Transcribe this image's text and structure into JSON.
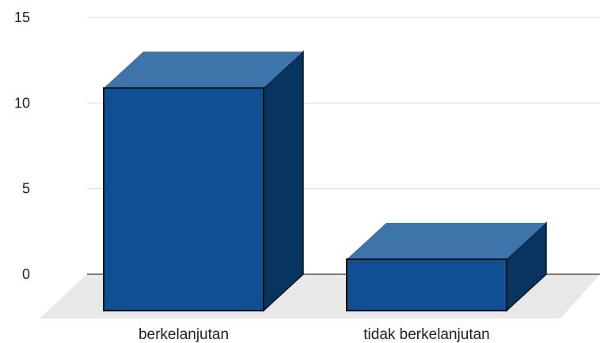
{
  "chart_data": {
    "type": "bar",
    "categories": [
      "berkelanjutan",
      "tidak berkelanjutan"
    ],
    "values": [
      13,
      3
    ],
    "ylim": [
      0,
      15
    ],
    "yticks": [
      0,
      5,
      10,
      15
    ],
    "grid": true,
    "legend": "none",
    "style": "3d"
  },
  "colors": {
    "bar_front": "#0e5093",
    "bar_top": "#3d74a9",
    "bar_side": "#08355f",
    "bar_outline": "#111111",
    "gridline": "#d9d9d9",
    "floor": "#e8e8e8",
    "axis": "#555555"
  }
}
